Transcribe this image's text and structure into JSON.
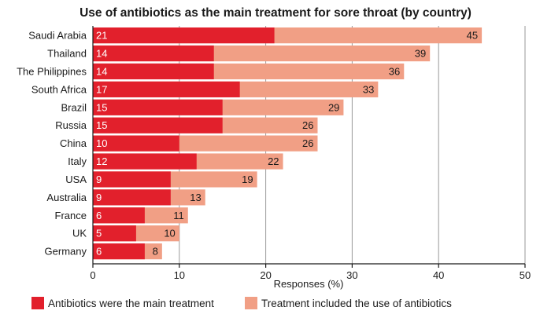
{
  "chart_data": {
    "type": "bar",
    "orientation": "horizontal",
    "stacking": "overlay",
    "title": "Use of antibiotics as the main treatment for sore throat (by country)",
    "xlabel": "Responses (%)",
    "ylabel": "",
    "xlim": [
      0,
      50
    ],
    "xticks": [
      0,
      10,
      20,
      30,
      40,
      50
    ],
    "grid": true,
    "legend_position": "bottom",
    "categories": [
      "Saudi Arabia",
      "Thailand",
      "The Philippines",
      "South Africa",
      "Brazil",
      "Russia",
      "China",
      "Italy",
      "USA",
      "Australia",
      "France",
      "UK",
      "Germany"
    ],
    "series": [
      {
        "name": "Antibiotics were the main treatment",
        "color": "#e2202c",
        "values": [
          21,
          14,
          14,
          17,
          15,
          15,
          10,
          12,
          9,
          9,
          6,
          5,
          6
        ]
      },
      {
        "name": "Treatment included the use of antibiotics",
        "color": "#f19f85",
        "values": [
          45,
          39,
          36,
          33,
          29,
          26,
          26,
          22,
          19,
          13,
          11,
          10,
          8
        ]
      }
    ]
  }
}
